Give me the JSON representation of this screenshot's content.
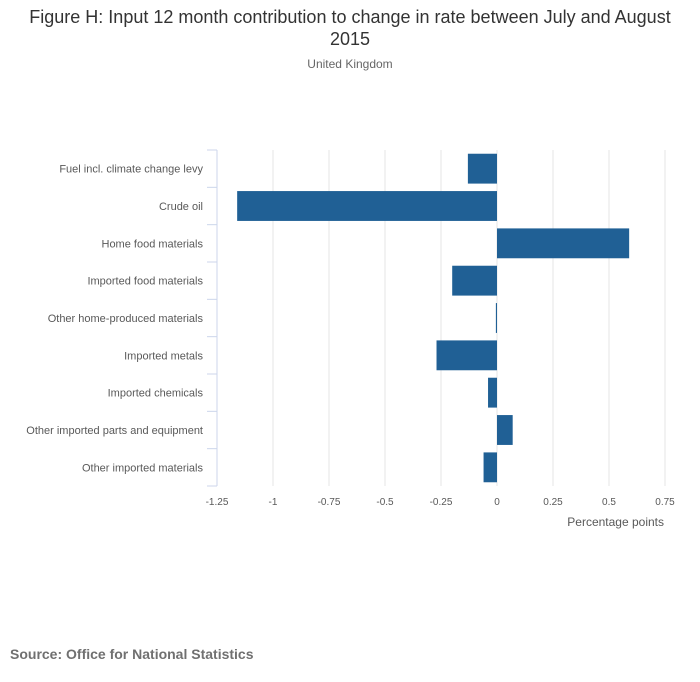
{
  "chart_data": {
    "type": "bar",
    "orientation": "horizontal",
    "title": "Figure H: Input 12 month contribution to change in rate between July and August 2015",
    "subtitle": "United Kingdom",
    "categories": [
      "Fuel incl. climate change levy",
      "Crude oil",
      "Home food materials",
      "Imported food materials",
      "Other home-produced materials",
      "Imported metals",
      "Imported chemicals",
      "Other imported parts and equipment",
      "Other imported materials"
    ],
    "values": [
      -0.13,
      -1.16,
      0.59,
      -0.2,
      -0.005,
      -0.27,
      -0.04,
      0.07,
      -0.06
    ],
    "xlabel": "Percentage points",
    "ylabel": "",
    "xlim": [
      -1.25,
      0.75
    ],
    "ticks": [
      -1.25,
      -1,
      -0.75,
      -0.5,
      -0.25,
      0,
      0.25,
      0.5,
      0.75
    ],
    "tick_labels": [
      "-1.25",
      "-1",
      "-0.75",
      "-0.5",
      "-0.25",
      "0",
      "0.25",
      "0.5",
      "0.75"
    ],
    "grid": true,
    "bar_color": "#206095"
  },
  "source": "Source: Office for National Statistics"
}
